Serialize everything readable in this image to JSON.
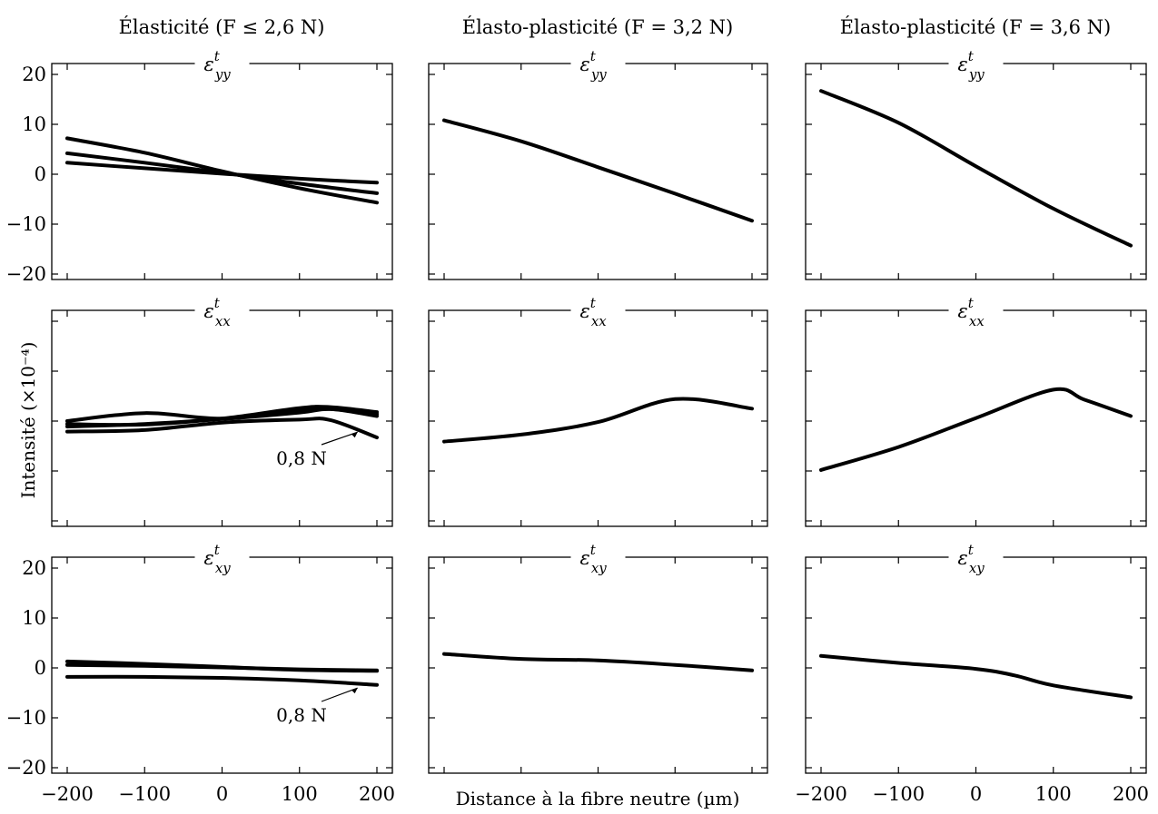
{
  "column_titles": [
    "Élasticité (F ≤ 2,6 N)",
    "Élasto-plasticité (F = 3,2 N)",
    "Élasto-plasticité (F = 3,6 N)"
  ],
  "xlabel": "Distance à la fibre neutre (µm)",
  "ylabel": "Intensité (×10⁻⁴)",
  "row_labels": [
    {
      "base": "ε",
      "sup": "t",
      "sub": "yy"
    },
    {
      "base": "ε",
      "sup": "t",
      "sub": "xx"
    },
    {
      "base": "ε",
      "sup": "t",
      "sub": "xy"
    }
  ],
  "annotation": "0,8 N",
  "x_ticks": [
    "−200",
    "−100",
    "0",
    "100",
    "200"
  ],
  "y_ticks": [
    "20",
    "10",
    "0",
    "−10",
    "−20"
  ],
  "chart_data": [
    {
      "type": "line",
      "panel": "row1-col1",
      "title": "Élasticité (F ≤ 2,6 N)",
      "xlim": [
        -200,
        200
      ],
      "ylim": [
        -20,
        20
      ],
      "series": [
        {
          "x": [
            -200,
            -100,
            0,
            100,
            200
          ],
          "y": [
            7.2,
            4.3,
            0.6,
            -2.8,
            -5.7
          ]
        },
        {
          "x": [
            -200,
            -100,
            0,
            100,
            200
          ],
          "y": [
            4.2,
            2.3,
            0.3,
            -1.9,
            -3.8
          ]
        },
        {
          "x": [
            -200,
            -100,
            0,
            100,
            200
          ],
          "y": [
            2.3,
            1.2,
            0.1,
            -0.9,
            -1.7
          ]
        }
      ]
    },
    {
      "type": "line",
      "panel": "row1-col2",
      "title": "Élasto-plasticité (F = 3,2 N)",
      "xlim": [
        -200,
        200
      ],
      "ylim": [
        -20,
        20
      ],
      "series": [
        {
          "x": [
            -200,
            -100,
            0,
            100,
            200
          ],
          "y": [
            10.8,
            6.6,
            1.4,
            -3.9,
            -9.3
          ]
        }
      ]
    },
    {
      "type": "line",
      "panel": "row1-col3",
      "title": "Élasto-plasticité (F = 3,6 N)",
      "xlim": [
        -200,
        200
      ],
      "ylim": [
        -20,
        20
      ],
      "series": [
        {
          "x": [
            -200,
            -100,
            0,
            100,
            200
          ],
          "y": [
            16.7,
            10.3,
            1.6,
            -6.9,
            -14.3
          ]
        }
      ]
    },
    {
      "type": "line",
      "panel": "row2-col1",
      "xlim": [
        -200,
        200
      ],
      "ylim": [
        -20,
        20
      ],
      "series": [
        {
          "x": [
            -200,
            -100,
            0,
            100,
            140,
            200
          ],
          "y": [
            -2.1,
            -1.8,
            -0.3,
            0.3,
            0.2,
            -3.3
          ]
        },
        {
          "x": [
            -200,
            -100,
            0,
            100,
            140,
            200
          ],
          "y": [
            0.0,
            1.6,
            0.5,
            2.1,
            2.4,
            1.4
          ]
        },
        {
          "x": [
            -200,
            -100,
            0,
            100,
            140,
            200
          ],
          "y": [
            -0.6,
            -0.7,
            0.5,
            2.6,
            2.8,
            1.8
          ]
        },
        {
          "x": [
            -200,
            -100,
            0,
            100,
            140,
            200
          ],
          "y": [
            -1.1,
            -0.6,
            0.4,
            1.7,
            2.4,
            1.0
          ]
        }
      ]
    },
    {
      "type": "line",
      "panel": "row2-col2",
      "xlim": [
        -200,
        200
      ],
      "ylim": [
        -20,
        20
      ],
      "series": [
        {
          "x": [
            -200,
            -100,
            0,
            100,
            200
          ],
          "y": [
            -4.1,
            -2.7,
            -0.2,
            4.4,
            2.5
          ]
        }
      ]
    },
    {
      "type": "line",
      "panel": "row2-col3",
      "xlim": [
        -200,
        200
      ],
      "ylim": [
        -20,
        20
      ],
      "series": [
        {
          "x": [
            -200,
            -100,
            0,
            100,
            140,
            200
          ],
          "y": [
            -9.8,
            -5.2,
            0.6,
            6.3,
            4.3,
            1.0
          ]
        }
      ]
    },
    {
      "type": "line",
      "panel": "row3-col1",
      "xlim": [
        -200,
        200
      ],
      "ylim": [
        -20,
        20
      ],
      "series": [
        {
          "x": [
            -200,
            -100,
            0,
            100,
            200
          ],
          "y": [
            1.3,
            0.8,
            0.2,
            -0.4,
            -0.6
          ]
        },
        {
          "x": [
            -200,
            -100,
            0,
            100,
            200
          ],
          "y": [
            0.6,
            0.4,
            0.1,
            -0.3,
            -0.5
          ]
        },
        {
          "x": [
            -200,
            -100,
            0,
            100,
            200
          ],
          "y": [
            -1.8,
            -1.8,
            -2.0,
            -2.5,
            -3.4
          ]
        }
      ]
    },
    {
      "type": "line",
      "panel": "row3-col2",
      "xlim": [
        -200,
        200
      ],
      "ylim": [
        -20,
        20
      ],
      "series": [
        {
          "x": [
            -200,
            -100,
            0,
            100,
            200
          ],
          "y": [
            2.8,
            1.8,
            1.5,
            0.6,
            -0.5
          ]
        }
      ]
    },
    {
      "type": "line",
      "panel": "row3-col3",
      "xlim": [
        -200,
        200
      ],
      "ylim": [
        -20,
        20
      ],
      "series": [
        {
          "x": [
            -200,
            -100,
            0,
            50,
            100,
            200
          ],
          "y": [
            2.4,
            1.0,
            -0.2,
            -1.5,
            -3.5,
            -5.9
          ]
        }
      ]
    }
  ]
}
